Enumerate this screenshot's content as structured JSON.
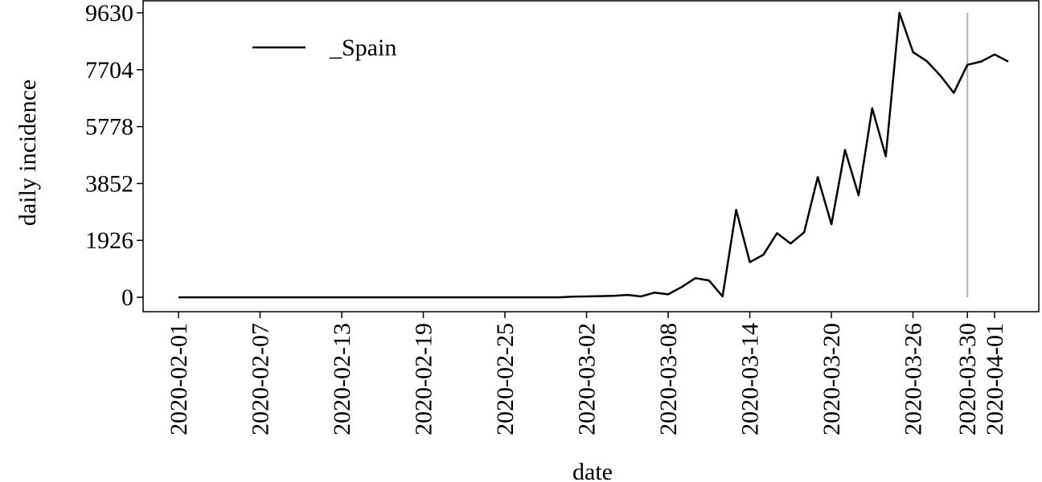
{
  "chart_data": {
    "type": "line",
    "x_label": "date",
    "y_label": "daily incidence",
    "x": [
      "2020-02-01",
      "2020-02-02",
      "2020-02-03",
      "2020-02-04",
      "2020-02-05",
      "2020-02-06",
      "2020-02-07",
      "2020-02-08",
      "2020-02-09",
      "2020-02-10",
      "2020-02-11",
      "2020-02-12",
      "2020-02-13",
      "2020-02-14",
      "2020-02-15",
      "2020-02-16",
      "2020-02-17",
      "2020-02-18",
      "2020-02-19",
      "2020-02-20",
      "2020-02-21",
      "2020-02-22",
      "2020-02-23",
      "2020-02-24",
      "2020-02-25",
      "2020-02-26",
      "2020-02-27",
      "2020-02-28",
      "2020-02-29",
      "2020-03-01",
      "2020-03-02",
      "2020-03-03",
      "2020-03-04",
      "2020-03-05",
      "2020-03-06",
      "2020-03-07",
      "2020-03-08",
      "2020-03-09",
      "2020-03-10",
      "2020-03-11",
      "2020-03-12",
      "2020-03-13",
      "2020-03-14",
      "2020-03-15",
      "2020-03-16",
      "2020-03-17",
      "2020-03-18",
      "2020-03-19",
      "2020-03-20",
      "2020-03-21",
      "2020-03-22",
      "2020-03-23",
      "2020-03-24",
      "2020-03-25",
      "2020-03-26",
      "2020-03-27",
      "2020-03-28",
      "2020-03-29",
      "2020-03-30",
      "2020-03-31",
      "2020-04-01",
      "2020-04-02"
    ],
    "series": [
      {
        "name": "_Spain",
        "color": "#000000",
        "values": [
          0,
          0,
          0,
          0,
          0,
          0,
          0,
          0,
          0,
          0,
          0,
          0,
          0,
          0,
          0,
          0,
          0,
          0,
          0,
          0,
          0,
          0,
          0,
          0,
          0,
          0,
          0,
          0,
          0,
          20,
          30,
          40,
          50,
          80,
          30,
          160,
          100,
          350,
          650,
          570,
          30,
          2960,
          1190,
          1440,
          2170,
          1820,
          2200,
          4070,
          2470,
          4990,
          3450,
          6400,
          4770,
          9630,
          8300,
          8000,
          7510,
          6920,
          7870,
          7980,
          8220,
          7980
        ]
      }
    ],
    "ylim": [
      -488,
      10037
    ],
    "yticks": [
      0,
      1926,
      3852,
      5778,
      7704,
      9630
    ],
    "xticks": [
      "2020-02-01",
      "2020-02-07",
      "2020-02-13",
      "2020-02-19",
      "2020-02-25",
      "2020-03-02",
      "2020-03-08",
      "2020-03-14",
      "2020-03-20",
      "2020-03-26",
      "2020-03-30",
      "2020-04-01"
    ],
    "vline": {
      "x": "2020-03-30",
      "color": "#b0b0b0"
    },
    "legend": "upper left",
    "grid": false
  }
}
